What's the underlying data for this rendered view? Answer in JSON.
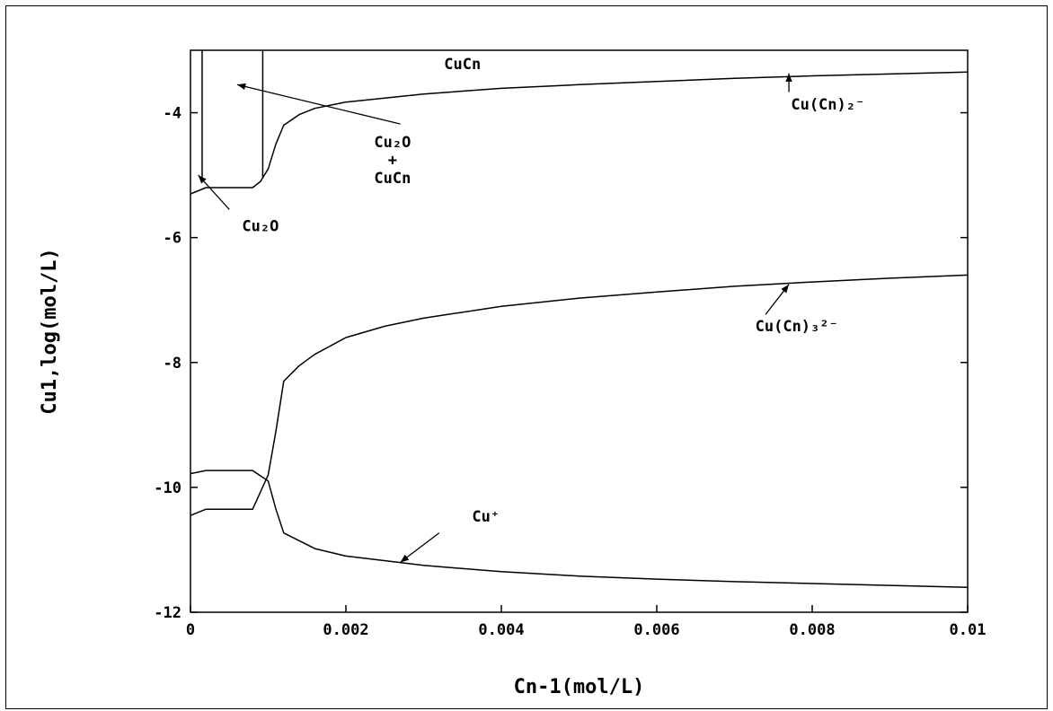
{
  "chart_data": {
    "type": "line",
    "xlabel": "Cn-1(mol/L)",
    "ylabel": "Cu1,log(mol/L)",
    "xlim": [
      0,
      0.01
    ],
    "ylim": [
      -12,
      -3
    ],
    "xticks": [
      {
        "value": 0,
        "label": "0"
      },
      {
        "value": 0.002,
        "label": "0.002"
      },
      {
        "value": 0.004,
        "label": "0.004"
      },
      {
        "value": 0.006,
        "label": "0.006"
      },
      {
        "value": 0.008,
        "label": "0.008"
      },
      {
        "value": 0.01,
        "label": "0.01"
      }
    ],
    "yticks": [
      {
        "value": -12,
        "label": "-12"
      },
      {
        "value": -10,
        "label": "-10"
      },
      {
        "value": -8,
        "label": "-8"
      },
      {
        "value": -6,
        "label": "-6"
      },
      {
        "value": -4,
        "label": "-4"
      }
    ],
    "grid": false,
    "legend": "none",
    "series": [
      {
        "points": [
          [
            0,
            -5.3
          ],
          [
            0.0002,
            -5.2
          ],
          [
            0.0004,
            -5.2
          ],
          [
            0.0006,
            -5.2
          ],
          [
            0.0008,
            -5.2
          ],
          [
            0.0009,
            -5.1
          ],
          [
            0.001,
            -4.9
          ],
          [
            0.00105,
            -4.7
          ],
          [
            0.0011,
            -4.5
          ],
          [
            0.0012,
            -4.2
          ],
          [
            0.0014,
            -4.03
          ],
          [
            0.0016,
            -3.93
          ],
          [
            0.002,
            -3.83
          ],
          [
            0.003,
            -3.7
          ],
          [
            0.004,
            -3.61
          ],
          [
            0.005,
            -3.55
          ],
          [
            0.006,
            -3.5
          ],
          [
            0.007,
            -3.45
          ],
          [
            0.008,
            -3.41
          ],
          [
            0.009,
            -3.38
          ],
          [
            0.01,
            -3.35
          ]
        ]
      },
      {
        "points": [
          [
            0,
            -10.45
          ],
          [
            0.0002,
            -10.35
          ],
          [
            0.0004,
            -10.35
          ],
          [
            0.0006,
            -10.35
          ],
          [
            0.0008,
            -10.35
          ],
          [
            0.001,
            -9.8
          ],
          [
            0.0011,
            -9.1
          ],
          [
            0.0012,
            -8.3
          ],
          [
            0.0014,
            -8.05
          ],
          [
            0.0016,
            -7.87
          ],
          [
            0.002,
            -7.6
          ],
          [
            0.0025,
            -7.42
          ],
          [
            0.003,
            -7.29
          ],
          [
            0.004,
            -7.1
          ],
          [
            0.005,
            -6.97
          ],
          [
            0.006,
            -6.87
          ],
          [
            0.007,
            -6.78
          ],
          [
            0.008,
            -6.71
          ],
          [
            0.009,
            -6.65
          ],
          [
            0.01,
            -6.6
          ]
        ]
      },
      {
        "points": [
          [
            0,
            -9.78
          ],
          [
            0.0002,
            -9.73
          ],
          [
            0.0004,
            -9.73
          ],
          [
            0.0006,
            -9.73
          ],
          [
            0.0008,
            -9.73
          ],
          [
            0.001,
            -9.9
          ],
          [
            0.0011,
            -10.35
          ],
          [
            0.0012,
            -10.73
          ],
          [
            0.0016,
            -10.98
          ],
          [
            0.002,
            -11.1
          ],
          [
            0.003,
            -11.25
          ],
          [
            0.004,
            -11.35
          ],
          [
            0.005,
            -11.42
          ],
          [
            0.006,
            -11.47
          ],
          [
            0.007,
            -11.51
          ],
          [
            0.008,
            -11.54
          ],
          [
            0.009,
            -11.57
          ],
          [
            0.01,
            -11.6
          ]
        ]
      }
    ],
    "boundaries": [
      {
        "x": 0.00015,
        "y_from": -5.05,
        "y_to": -3
      },
      {
        "x": 0.00093,
        "y_from": -5.05,
        "y_to": -3
      }
    ],
    "annotations": [
      {
        "id": "cucn-region",
        "lines": [
          "CuCn"
        ],
        "x": 0.0035,
        "y": -3.3,
        "arrow": null
      },
      {
        "id": "cu2o-cucn",
        "lines": [
          "Cu₂O",
          "+",
          "CuCn"
        ],
        "x": 0.0026,
        "y": -4.55,
        "arrow": {
          "from": [
            0.0027,
            -4.18
          ],
          "to": [
            0.0006,
            -3.55
          ]
        }
      },
      {
        "id": "cu2o",
        "lines": [
          "Cu₂O"
        ],
        "x": 0.0009,
        "y": -5.9,
        "arrow": {
          "from": [
            0.0005,
            -5.55
          ],
          "to": [
            0.0001,
            -5.0
          ]
        }
      },
      {
        "id": "cucn2",
        "lines": [
          "Cu(Cn)₂⁻"
        ],
        "x": 0.0082,
        "y": -3.95,
        "arrow": {
          "from": [
            0.0077,
            -3.67
          ],
          "to": [
            0.0077,
            -3.37
          ]
        }
      },
      {
        "id": "cucn3",
        "lines": [
          "Cu(Cn)₃²⁻"
        ],
        "x": 0.0078,
        "y": -7.5,
        "arrow": {
          "from": [
            0.0074,
            -7.23
          ],
          "to": [
            0.0077,
            -6.75
          ]
        }
      },
      {
        "id": "cuplus",
        "lines": [
          "Cu⁺"
        ],
        "x": 0.0038,
        "y": -10.55,
        "arrow": {
          "from": [
            0.0032,
            -10.73
          ],
          "to": [
            0.0027,
            -11.2
          ]
        }
      }
    ]
  }
}
